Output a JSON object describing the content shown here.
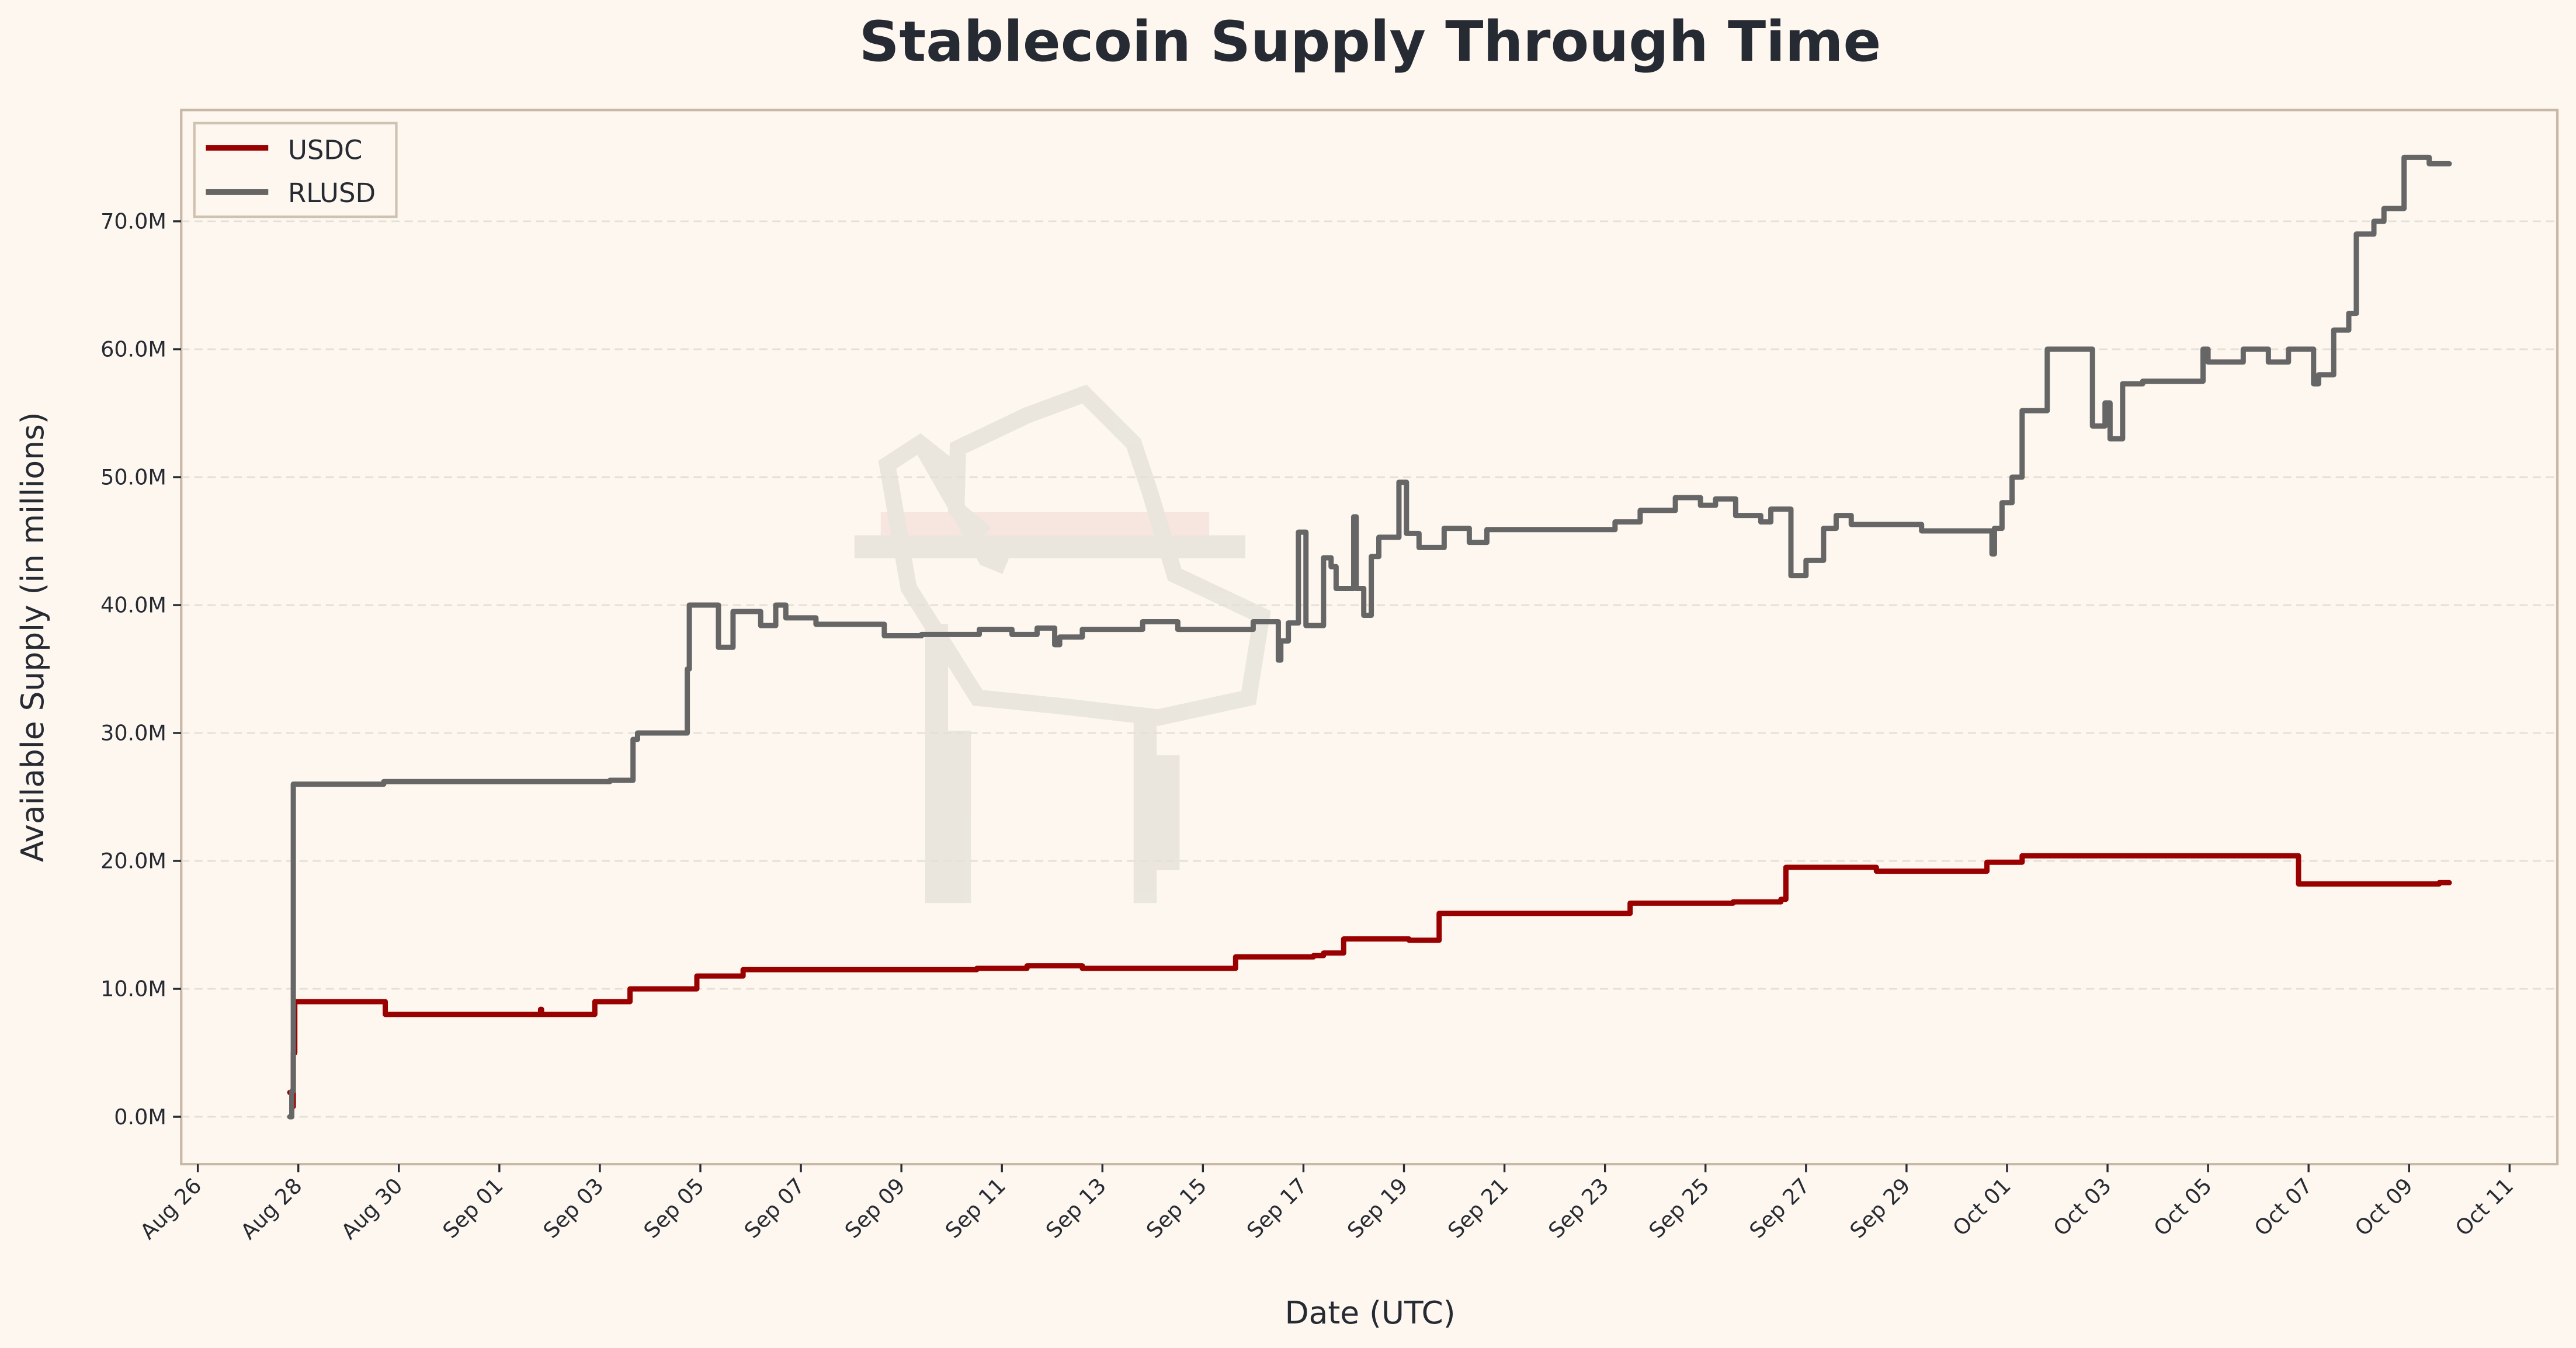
{
  "chart_data": {
    "type": "line",
    "title": "Stablecoin Supply Through Time",
    "xlabel": "Date (UTC)",
    "ylabel": "Available Supply (in millions)",
    "x_units": "days since Aug 26",
    "xlim": [
      -0.33,
      46.95
    ],
    "ylim": [
      -3.7,
      78.7
    ],
    "grid": "y dashed",
    "legend_position": "top-left",
    "x_ticks": [
      {
        "day": 0,
        "label": "Aug 26"
      },
      {
        "day": 2,
        "label": "Aug 28"
      },
      {
        "day": 4,
        "label": "Aug 30"
      },
      {
        "day": 6,
        "label": "Sep 01"
      },
      {
        "day": 8,
        "label": "Sep 03"
      },
      {
        "day": 10,
        "label": "Sep 05"
      },
      {
        "day": 12,
        "label": "Sep 07"
      },
      {
        "day": 14,
        "label": "Sep 09"
      },
      {
        "day": 16,
        "label": "Sep 11"
      },
      {
        "day": 18,
        "label": "Sep 13"
      },
      {
        "day": 20,
        "label": "Sep 15"
      },
      {
        "day": 22,
        "label": "Sep 17"
      },
      {
        "day": 24,
        "label": "Sep 19"
      },
      {
        "day": 26,
        "label": "Sep 21"
      },
      {
        "day": 28,
        "label": "Sep 23"
      },
      {
        "day": 30,
        "label": "Sep 25"
      },
      {
        "day": 32,
        "label": "Sep 27"
      },
      {
        "day": 34,
        "label": "Sep 29"
      },
      {
        "day": 36,
        "label": "Oct 01"
      },
      {
        "day": 38,
        "label": "Oct 03"
      },
      {
        "day": 40,
        "label": "Oct 05"
      },
      {
        "day": 42,
        "label": "Oct 07"
      },
      {
        "day": 44,
        "label": "Oct 09"
      },
      {
        "day": 46,
        "label": "Oct 11"
      }
    ],
    "y_ticks": [
      {
        "value": 0,
        "label": "0.0M"
      },
      {
        "value": 10,
        "label": "10.0M"
      },
      {
        "value": 20,
        "label": "20.0M"
      },
      {
        "value": 30,
        "label": "30.0M"
      },
      {
        "value": 40,
        "label": "40.0M"
      },
      {
        "value": 50,
        "label": "50.0M"
      },
      {
        "value": 60,
        "label": "60.0M"
      },
      {
        "value": 70,
        "label": "70.0M"
      }
    ],
    "series": [
      {
        "name": "USDC",
        "color": "#990000",
        "points": [
          [
            1.83,
            1.9
          ],
          [
            1.88,
            0.8
          ],
          [
            1.9,
            5
          ],
          [
            1.93,
            9.0
          ],
          [
            3.73,
            8.0
          ],
          [
            6.8,
            8.0
          ],
          [
            6.82,
            8.4
          ],
          [
            6.84,
            8.0
          ],
          [
            7.9,
            9.0
          ],
          [
            8.6,
            10.0
          ],
          [
            9.93,
            11.0
          ],
          [
            10.85,
            11.5
          ],
          [
            15.5,
            11.6
          ],
          [
            16.5,
            11.8
          ],
          [
            17.6,
            11.6
          ],
          [
            20.65,
            12.5
          ],
          [
            22.2,
            12.6
          ],
          [
            22.4,
            12.8
          ],
          [
            22.8,
            13.9
          ],
          [
            24.1,
            13.8
          ],
          [
            24.7,
            15.9
          ],
          [
            28.5,
            16.7
          ],
          [
            30.55,
            16.8
          ],
          [
            31.5,
            17.0
          ],
          [
            31.6,
            19.5
          ],
          [
            33.4,
            19.2
          ],
          [
            35.6,
            19.9
          ],
          [
            36.3,
            20.4
          ],
          [
            41.8,
            18.2
          ],
          [
            44.6,
            18.3
          ],
          [
            44.8,
            18.3
          ]
        ]
      },
      {
        "name": "RLUSD",
        "color": "#666666",
        "points": [
          [
            1.83,
            0
          ],
          [
            1.87,
            2
          ],
          [
            1.9,
            26.0
          ],
          [
            3.7,
            26.2
          ],
          [
            8.2,
            26.3
          ],
          [
            8.66,
            29.5
          ],
          [
            8.75,
            30.0
          ],
          [
            9.74,
            35.0
          ],
          [
            9.78,
            40.0
          ],
          [
            10.36,
            36.7
          ],
          [
            10.65,
            39.5
          ],
          [
            11.2,
            38.4
          ],
          [
            11.5,
            40.0
          ],
          [
            11.7,
            39.0
          ],
          [
            12.3,
            38.5
          ],
          [
            13.66,
            37.6
          ],
          [
            14.4,
            37.7
          ],
          [
            15.55,
            38.1
          ],
          [
            16.2,
            37.7
          ],
          [
            16.7,
            38.2
          ],
          [
            17.05,
            36.9
          ],
          [
            17.15,
            37.5
          ],
          [
            17.6,
            38.1
          ],
          [
            18.8,
            38.7
          ],
          [
            19.5,
            38.1
          ],
          [
            21.0,
            38.7
          ],
          [
            21.5,
            35.7
          ],
          [
            21.55,
            37.2
          ],
          [
            21.7,
            38.6
          ],
          [
            21.9,
            45.7
          ],
          [
            22.05,
            38.4
          ],
          [
            22.4,
            43.7
          ],
          [
            22.55,
            43.0
          ],
          [
            22.65,
            41.3
          ],
          [
            23.0,
            46.9
          ],
          [
            23.05,
            41.3
          ],
          [
            23.2,
            39.2
          ],
          [
            23.35,
            43.8
          ],
          [
            23.5,
            45.3
          ],
          [
            23.9,
            49.6
          ],
          [
            24.05,
            45.6
          ],
          [
            24.3,
            44.5
          ],
          [
            24.8,
            46.0
          ],
          [
            25.3,
            44.9
          ],
          [
            25.65,
            45.9
          ],
          [
            28.2,
            46.5
          ],
          [
            28.7,
            47.4
          ],
          [
            29.4,
            48.4
          ],
          [
            29.9,
            47.8
          ],
          [
            30.2,
            48.3
          ],
          [
            30.6,
            47.0
          ],
          [
            31.1,
            46.5
          ],
          [
            31.3,
            47.5
          ],
          [
            31.7,
            42.3
          ],
          [
            32.0,
            43.5
          ],
          [
            32.35,
            46.0
          ],
          [
            32.6,
            47.0
          ],
          [
            32.9,
            46.3
          ],
          [
            34.3,
            45.8
          ],
          [
            35.7,
            44.0
          ],
          [
            35.75,
            46.0
          ],
          [
            35.9,
            48.0
          ],
          [
            36.1,
            50.0
          ],
          [
            36.3,
            55.2
          ],
          [
            36.8,
            60.0
          ],
          [
            37.7,
            54.0
          ],
          [
            37.95,
            55.8
          ],
          [
            38.05,
            53.0
          ],
          [
            38.3,
            57.3
          ],
          [
            38.7,
            57.5
          ],
          [
            39.9,
            60.0
          ],
          [
            40.0,
            59.0
          ],
          [
            40.7,
            60.0
          ],
          [
            41.2,
            59.0
          ],
          [
            41.6,
            60.0
          ],
          [
            42.1,
            57.3
          ],
          [
            42.2,
            58.0
          ],
          [
            42.5,
            61.5
          ],
          [
            42.8,
            62.8
          ],
          [
            42.95,
            69.0
          ],
          [
            43.3,
            70.0
          ],
          [
            43.5,
            71.0
          ],
          [
            43.9,
            75.0
          ],
          [
            44.4,
            74.5
          ],
          [
            44.8,
            74.5
          ]
        ]
      }
    ]
  }
}
